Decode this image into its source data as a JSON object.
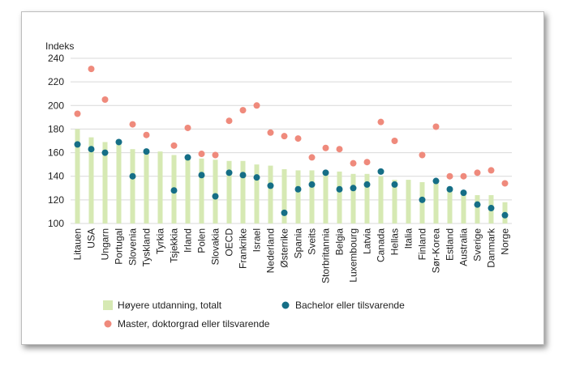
{
  "chart_data": {
    "type": "bar",
    "title": "",
    "ylabel": "Indeks",
    "xlabel": "",
    "ylim": [
      100,
      240
    ],
    "yticks": [
      100,
      120,
      140,
      160,
      180,
      200,
      220,
      240
    ],
    "grid": true,
    "legend_position": "bottom",
    "categories": [
      "Litauen",
      "USA",
      "Ungarn",
      "Portugal",
      "Slovenia",
      "Tyskland",
      "Tyrkia",
      "Tsjekkia",
      "Irland",
      "Polen",
      "Slovakia",
      "OECD",
      "Frankrike",
      "Israel",
      "Nederland",
      "Østerrike",
      "Spania",
      "Sveits",
      "Storbritannia",
      "Belgia",
      "Luxembourg",
      "Latvia",
      "Canada",
      "Hellas",
      "Italia",
      "Finland",
      "Sør-Korea",
      "Estland",
      "Australia",
      "Sverige",
      "Danmark",
      "Norge"
    ],
    "series": [
      {
        "name": "Høyere utdanning, totalt",
        "kind": "bar",
        "color": "#d6e9b3",
        "values": [
          180,
          173,
          169,
          169,
          163,
          161,
          161,
          158,
          157,
          155,
          154,
          153,
          153,
          150,
          149,
          146,
          145,
          145,
          144,
          144,
          142,
          142,
          140,
          137,
          137,
          135,
          134,
          128,
          126,
          124,
          124,
          118
        ]
      },
      {
        "name": "Bachelor eller tilsvarende",
        "kind": "dot",
        "color": "#156e86",
        "values": [
          167,
          163,
          160,
          169,
          140,
          161,
          null,
          128,
          156,
          141,
          123,
          143,
          141,
          139,
          132,
          109,
          129,
          133,
          143,
          129,
          130,
          133,
          144,
          133,
          null,
          120,
          136,
          129,
          126,
          116,
          113,
          107
        ]
      },
      {
        "name": "Master, doktorgrad eller tilsvarende",
        "kind": "dot",
        "color": "#ef8a7c",
        "values": [
          193,
          231,
          205,
          null,
          184,
          175,
          null,
          166,
          181,
          159,
          158,
          187,
          196,
          200,
          177,
          174,
          172,
          156,
          164,
          163,
          151,
          152,
          186,
          170,
          null,
          158,
          182,
          140,
          140,
          143,
          145,
          134
        ]
      }
    ]
  }
}
